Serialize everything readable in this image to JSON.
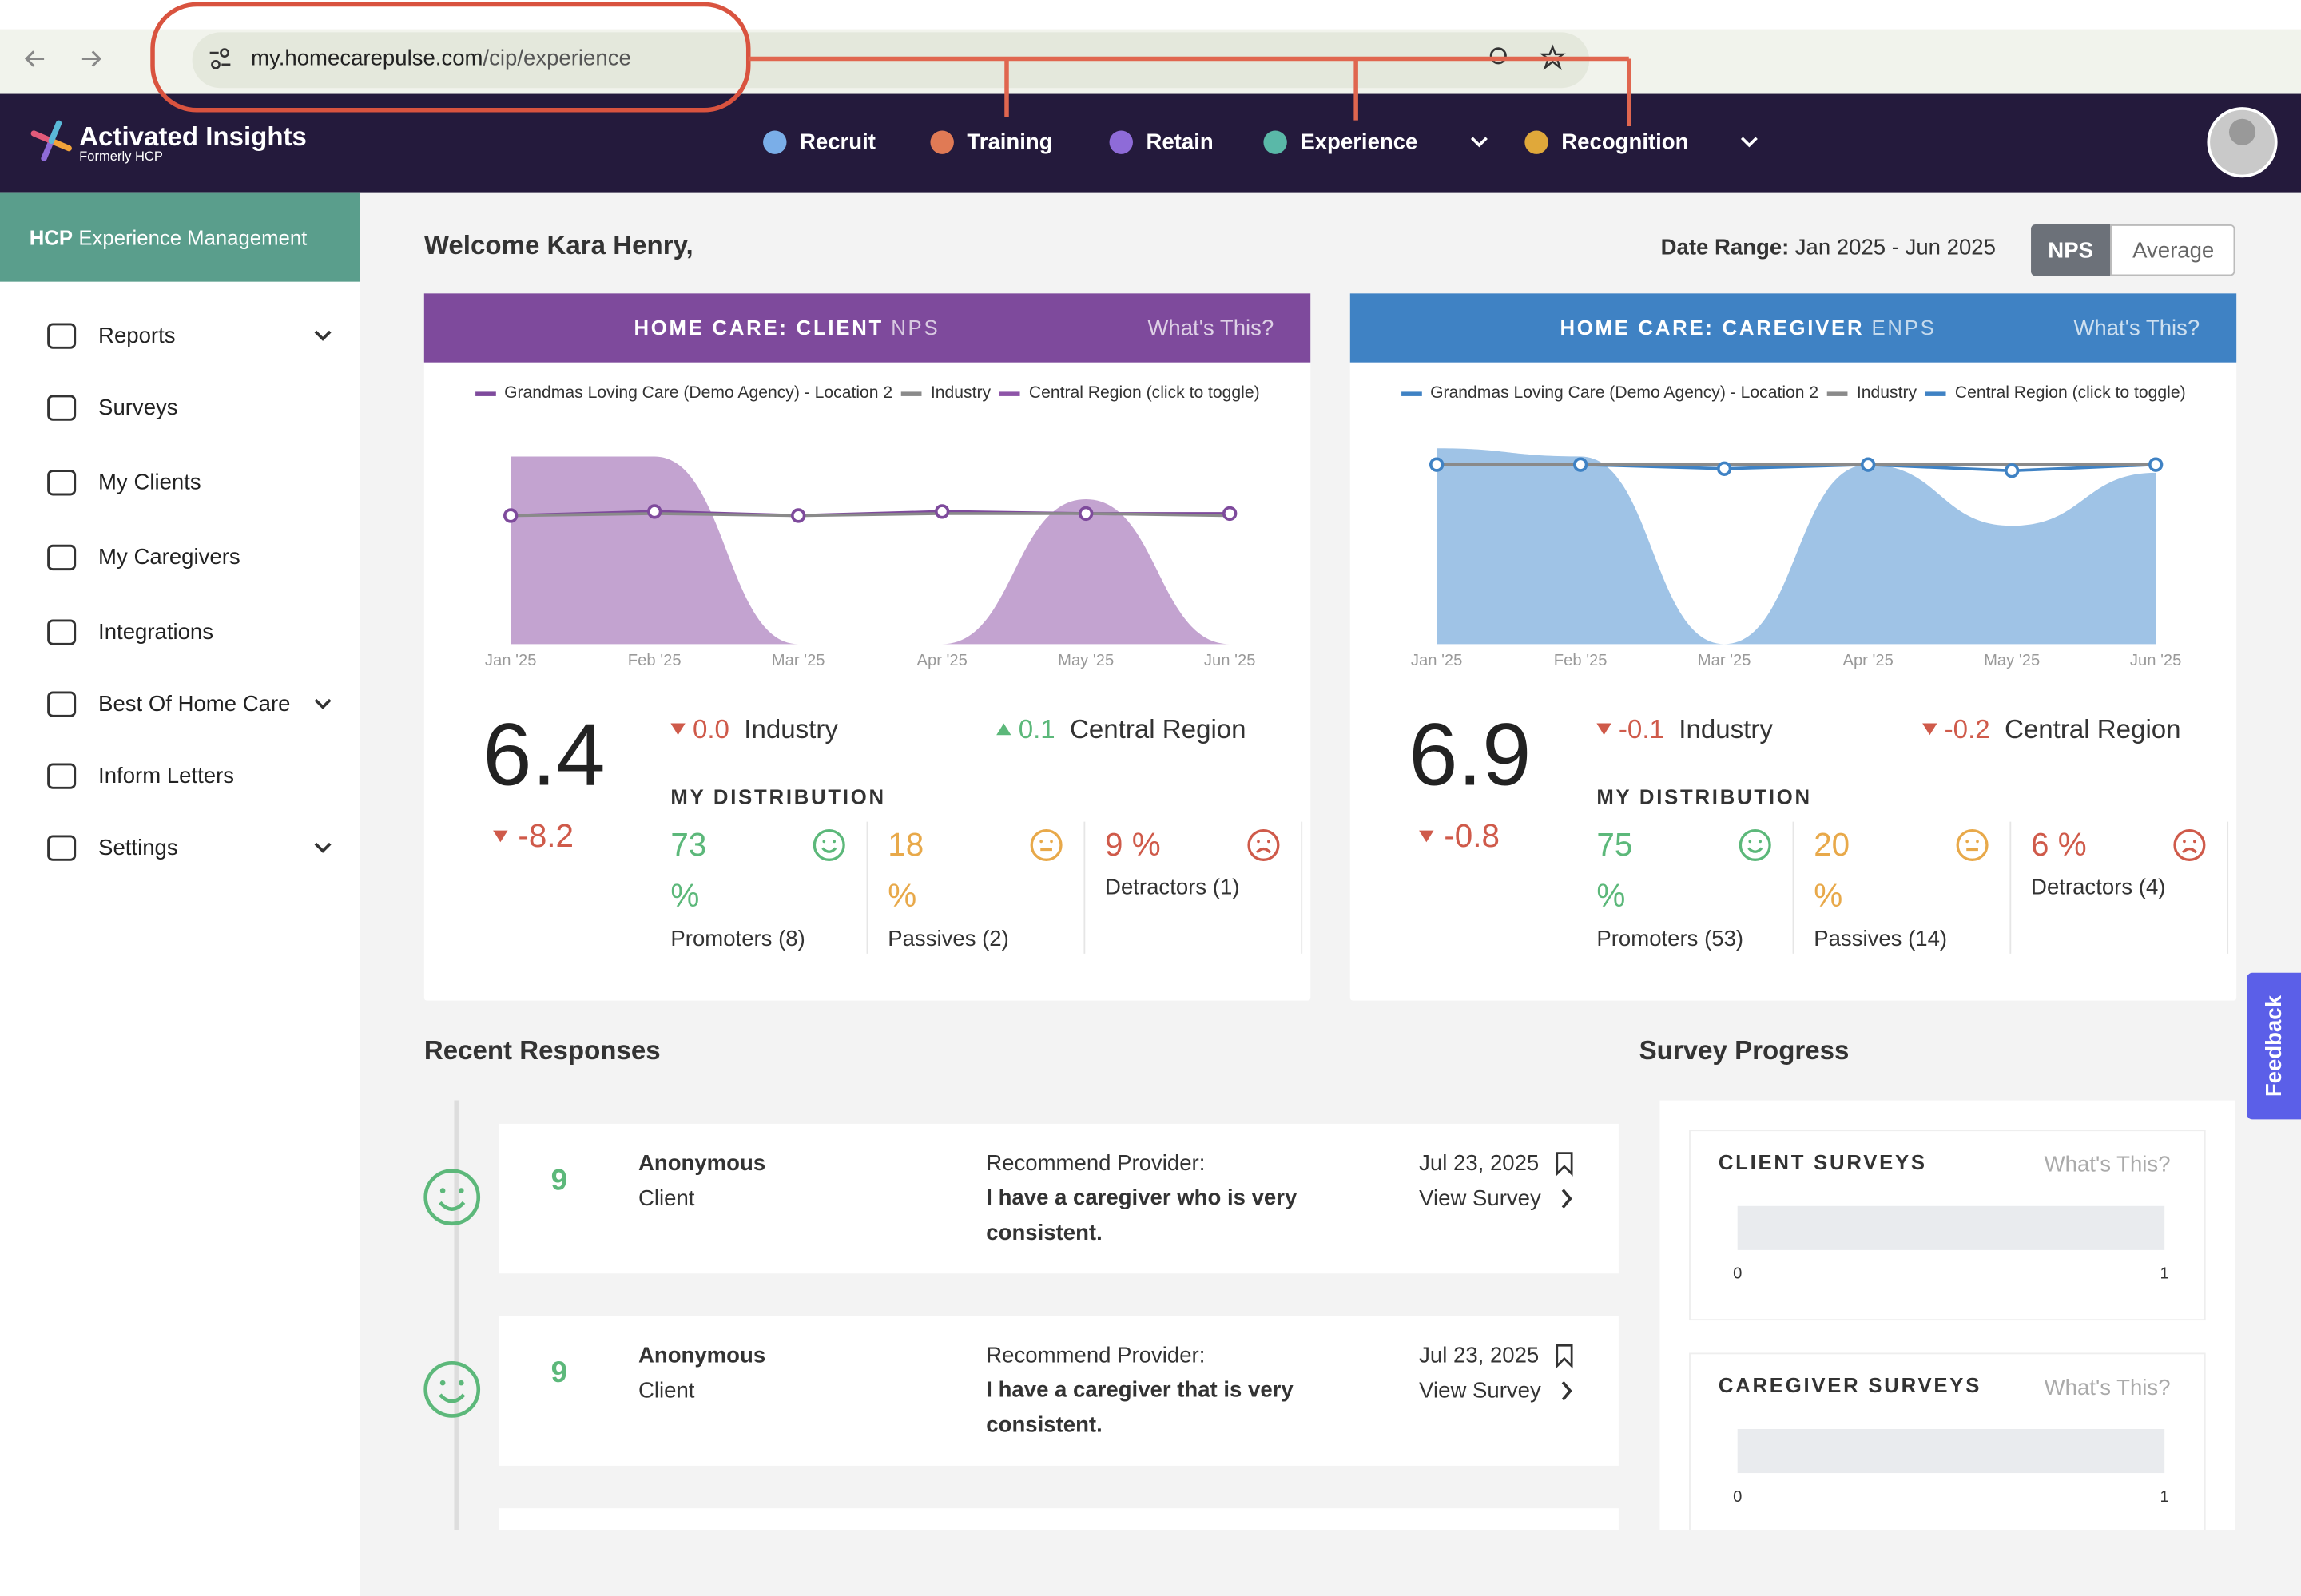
{
  "browser": {
    "url_host": "my.homecarepulse.com",
    "url_path": "/cip/experience"
  },
  "nav": {
    "brand": "Activated Insights",
    "brand_sub": "Formerly HCP",
    "items": [
      {
        "label": "Recruit",
        "dropdown": false
      },
      {
        "label": "Training",
        "dropdown": false
      },
      {
        "label": "Retain",
        "dropdown": false
      },
      {
        "label": "Experience",
        "dropdown": true
      },
      {
        "label": "Recognition",
        "dropdown": true
      }
    ]
  },
  "sidebar": {
    "header_bold": "HCP",
    "header": "Experience Management",
    "items": [
      {
        "label": "Reports",
        "expandable": true
      },
      {
        "label": "Surveys",
        "expandable": false
      },
      {
        "label": "My Clients",
        "expandable": false
      },
      {
        "label": "My Caregivers",
        "expandable": false
      },
      {
        "label": "Integrations",
        "expandable": false
      },
      {
        "label": "Best Of Home Care",
        "expandable": true
      },
      {
        "label": "Inform Letters",
        "expandable": false
      },
      {
        "label": "Settings",
        "expandable": true
      }
    ]
  },
  "welcome": "Welcome Kara Henry,",
  "date_range_label": "Date Range:",
  "date_range": "Jan 2025 - Jun 2025",
  "toggle": [
    "NPS",
    "Average"
  ],
  "cards": [
    {
      "title_bold": "HOME CARE: CLIENT",
      "title_light": "NPS",
      "help": "What's This?",
      "header_color": "#7e4a9c",
      "chart": {
        "type": "line",
        "categories": [
          "Jan '25",
          "Feb '25",
          "Mar '25",
          "Apr '25",
          "May '25",
          "Jun '25"
        ],
        "ylim": [
          0,
          10
        ],
        "series": [
          {
            "name": "Grandmas Loving Care (Demo Agency) - Location 2",
            "color": "#7e4a9c",
            "values": [
              6.3,
              6.5,
              6.3,
              6.5,
              6.4,
              6.4
            ]
          },
          {
            "name": "Industry",
            "color": "#8a8a8a",
            "values": [
              6.3,
              6.4,
              6.3,
              6.4,
              6.4,
              6.3
            ]
          },
          {
            "name": "Central Region (click to toggle)",
            "color": "#8e55a8",
            "area": true,
            "fill": "#c3a3d0",
            "values": [
              9.2,
              9.2,
              0,
              0,
              7.1,
              0
            ]
          }
        ]
      },
      "score": "6.4",
      "score_change": "-8.2",
      "comparisons": [
        {
          "value": "0.0",
          "label": "Industry",
          "direction": "down"
        },
        {
          "value": "0.1",
          "label": "Central Region",
          "direction": "up"
        }
      ],
      "distribution_title": "MY DISTRIBUTION",
      "distribution": [
        {
          "value": "73 %",
          "label": "Promoters (8)"
        },
        {
          "value": "18 %",
          "label": "Passives (2)"
        },
        {
          "value": "9 %",
          "label": "Detractors (1)"
        }
      ]
    },
    {
      "title_bold": "HOME CARE: CAREGIVER",
      "title_light": "ENPS",
      "help": "What's This?",
      "header_color": "#3f82c4",
      "chart": {
        "type": "line",
        "categories": [
          "Jan '25",
          "Feb '25",
          "Mar '25",
          "Apr '25",
          "May '25",
          "Jun '25"
        ],
        "ylim": [
          0,
          10
        ],
        "series": [
          {
            "name": "Grandmas Loving Care (Demo Agency) - Location 2",
            "color": "#3f82c4",
            "values": [
              8.8,
              8.8,
              8.6,
              8.8,
              8.5,
              8.8
            ]
          },
          {
            "name": "Industry",
            "color": "#8a8a8a",
            "values": [
              8.8,
              8.8,
              8.8,
              8.8,
              8.8,
              8.8
            ]
          },
          {
            "name": "Central Region (click to toggle)",
            "color": "#3f82c4",
            "area": true,
            "fill": "#9fc3e6",
            "values": [
              9.6,
              9.2,
              0,
              8.8,
              5.8,
              8.4
            ]
          }
        ]
      },
      "score": "6.9",
      "score_change": "-0.8",
      "comparisons": [
        {
          "value": "-0.1",
          "label": "Industry",
          "direction": "down"
        },
        {
          "value": "-0.2",
          "label": "Central Region",
          "direction": "down"
        }
      ],
      "distribution_title": "MY DISTRIBUTION",
      "distribution": [
        {
          "value": "75 %",
          "label": "Promoters (53)"
        },
        {
          "value": "20 %",
          "label": "Passives (14)"
        },
        {
          "value": "6 %",
          "label": "Detractors (4)"
        }
      ]
    }
  ],
  "recent_title": "Recent Responses",
  "responses": [
    {
      "score": "9",
      "name": "Anonymous",
      "role": "Client",
      "question": "Recommend Provider:",
      "answer": "I have a caregiver who is very consistent.",
      "date": "Jul 23, 2025",
      "link": "View Survey"
    },
    {
      "score": "9",
      "name": "Anonymous",
      "role": "Client",
      "question": "Recommend Provider:",
      "answer": "I have a caregiver that is very consistent.",
      "date": "Jul 23, 2025",
      "link": "View Survey"
    }
  ],
  "progress_title": "Survey Progress",
  "progress": [
    {
      "title": "CLIENT SURVEYS",
      "help": "What's This?",
      "min": "0",
      "max": "1"
    },
    {
      "title": "CAREGIVER SURVEYS",
      "help": "What's This?",
      "min": "0",
      "max": "1"
    }
  ],
  "feedback": "Feedback"
}
